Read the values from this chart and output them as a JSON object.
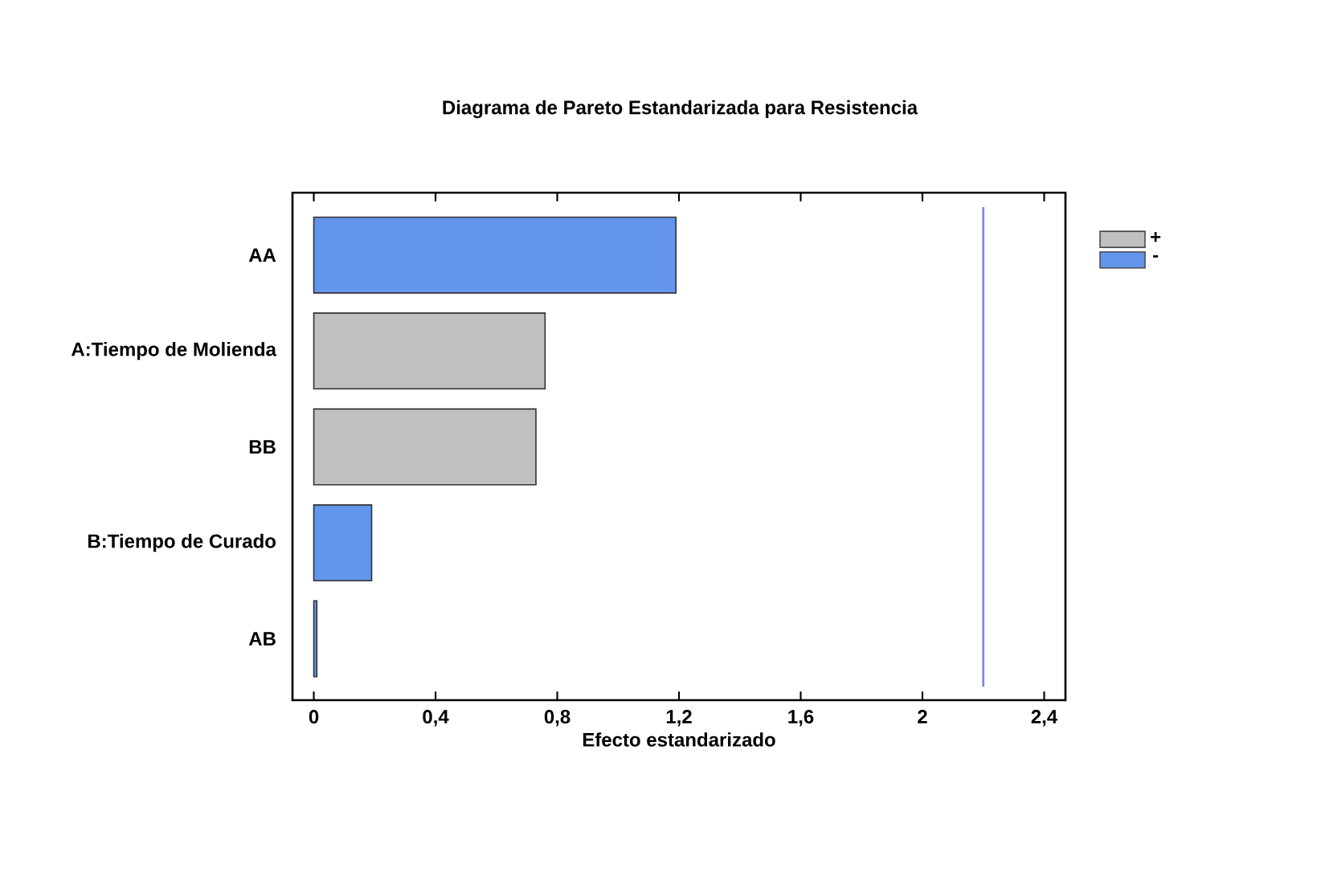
{
  "chart_data": {
    "type": "bar",
    "orientation": "horizontal",
    "title": "Diagrama de Pareto Estandarizada para Resistencia",
    "xlabel": "Efecto estandarizado",
    "categories": [
      "AA",
      "A:Tiempo de Molienda",
      "BB",
      "B:Tiempo de Curado",
      "AB"
    ],
    "series": [
      {
        "name": "+",
        "color": "#c0c0c0",
        "values": [
          null,
          0.76,
          0.73,
          null,
          null
        ]
      },
      {
        "name": "-",
        "color": "#6495ed",
        "values": [
          1.19,
          null,
          null,
          0.19,
          0.01
        ]
      }
    ],
    "xlim": [
      -0.07,
      2.47
    ],
    "xticks": [
      {
        "value": 0,
        "label": "0"
      },
      {
        "value": 0.4,
        "label": "0,4"
      },
      {
        "value": 0.8,
        "label": "0,8"
      },
      {
        "value": 1.2,
        "label": "1,2"
      },
      {
        "value": 1.6,
        "label": "1,6"
      },
      {
        "value": 2,
        "label": "2"
      },
      {
        "value": 2.4,
        "label": "2,4"
      }
    ],
    "ref_lines": [
      {
        "axis": "x",
        "value": 2.2,
        "color": "#8080ff"
      }
    ],
    "legend": "right",
    "grid": false
  }
}
